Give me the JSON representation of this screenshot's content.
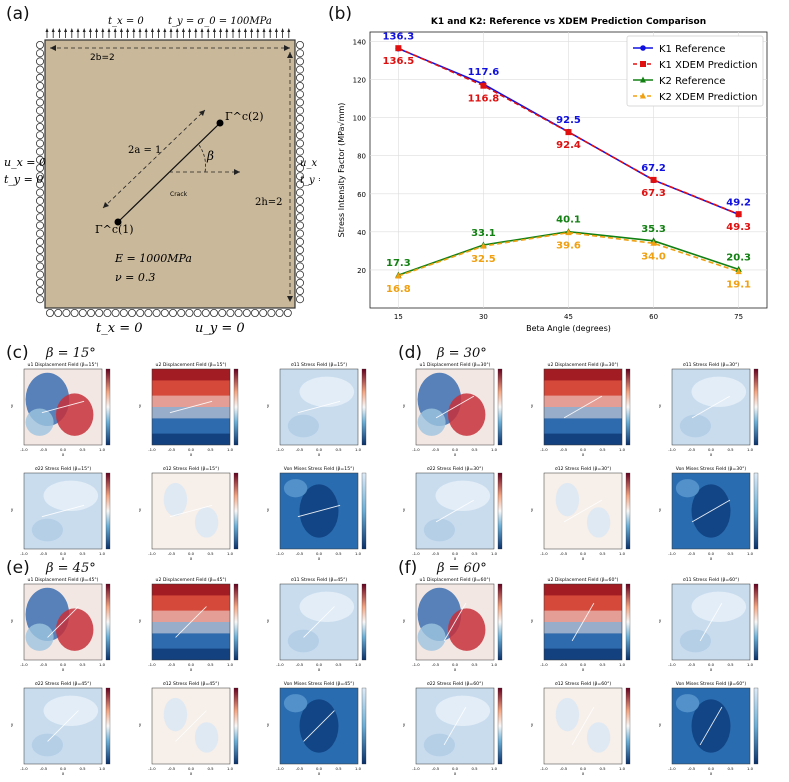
{
  "panel_labels": {
    "a": "(a)",
    "b": "(b)",
    "c": "(c)",
    "d": "(d)",
    "e": "(e)",
    "f": "(f)"
  },
  "panel_a": {
    "top_bc": "t_x = 0",
    "top_stress": "t_y = σ_0 = 100MPa",
    "width_label": "2b=2",
    "crack_length": "2a = 1",
    "crack_label": "Crack",
    "beta": "β",
    "tip1": "Γ^c(1)",
    "tip2": "Γ^c(2)",
    "height_label": "2h=2",
    "left_bc1": "u_x = 0",
    "left_bc2": "t_y = 0",
    "right_bc1": "u_x = 0",
    "right_bc2": "t_y = 0",
    "modulus": "E = 1000MPa",
    "poisson": "ν = 0.3",
    "bottom_bc1": "t_x = 0",
    "bottom_bc2": "u_y = 0",
    "colors": {
      "plate": "#c9b89a",
      "border": "#333333"
    }
  },
  "chart_data": {
    "type": "line",
    "title": "K1 and K2: Reference vs XDEM Prediction Comparison",
    "xlabel": "Beta Angle (degrees)",
    "ylabel": "Stress Intensity Factor (MPa√mm)",
    "x": [
      15,
      30,
      45,
      60,
      75
    ],
    "xticks": [
      "15",
      "30",
      "45",
      "60",
      "75"
    ],
    "yticks": [
      "20",
      "40",
      "60",
      "80",
      "100",
      "120",
      "140"
    ],
    "ylim": [
      0,
      145
    ],
    "xlim": [
      10,
      80
    ],
    "grid": true,
    "legend_position": "top-right",
    "series": [
      {
        "name": "K1 Reference",
        "values": [
          136.3,
          117.6,
          92.5,
          67.2,
          49.2
        ],
        "color": "#1010e0",
        "style": "solid",
        "marker": "circle",
        "labels": [
          "136.3",
          "117.6",
          "92.5",
          "67.2",
          "49.2"
        ],
        "label_pos": "above"
      },
      {
        "name": "K1 XDEM Prediction",
        "values": [
          136.5,
          116.8,
          92.4,
          67.3,
          49.3
        ],
        "color": "#e01010",
        "style": "dashed",
        "marker": "square",
        "labels": [
          "136.5",
          "116.8",
          "92.4",
          "67.3",
          "49.3"
        ],
        "label_pos": "below"
      },
      {
        "name": "K2 Reference",
        "values": [
          17.3,
          33.1,
          40.1,
          35.3,
          20.3
        ],
        "color": "#128012",
        "style": "solid",
        "marker": "triangle",
        "labels": [
          "17.3",
          "33.1",
          "40.1",
          "35.3",
          "20.3"
        ],
        "label_pos": "above"
      },
      {
        "name": "K2 XDEM Prediction",
        "values": [
          16.8,
          32.5,
          39.6,
          34.0,
          19.1
        ],
        "color": "#f0a010",
        "style": "dashed",
        "marker": "triangle",
        "labels": [
          "16.8",
          "32.5",
          "39.6",
          "34.0",
          "19.1"
        ],
        "label_pos": "below"
      }
    ]
  },
  "field_panels": [
    {
      "key": "c",
      "beta_label": "β = 15°",
      "titles": [
        "u1 Displacement Field (β=15°)",
        "u2 Displacement Field (β=15°)",
        "σ11 Stress Field (β=15°)",
        "σ22 Stress Field (β=15°)",
        "σ12 Stress Field (β=15°)",
        "Von Mises Stress Field (β=15°)"
      ]
    },
    {
      "key": "d",
      "beta_label": "β = 30°",
      "titles": [
        "u1 Displacement Field (β=30°)",
        "u2 Displacement Field (β=30°)",
        "σ11 Stress Field (β=30°)",
        "σ22 Stress Field (β=30°)",
        "σ12 Stress Field (β=30°)",
        "Von Mises Stress Field (β=30°)"
      ]
    },
    {
      "key": "e",
      "beta_label": "β = 45°",
      "titles": [
        "u1 Displacement Field (β=45°)",
        "u2 Displacement Field (β=45°)",
        "σ11 Stress Field (β=45°)",
        "σ22 Stress Field (β=45°)",
        "σ12 Stress Field (β=45°)",
        "Von Mises Stress Field (β=45°)"
      ]
    },
    {
      "key": "f",
      "beta_label": "β = 60°",
      "titles": [
        "u1 Displacement Field (β=60°)",
        "u2 Displacement Field (β=60°)",
        "σ11 Stress Field (β=60°)",
        "σ22 Stress Field (β=60°)",
        "σ12 Stress Field (β=60°)",
        "Von Mises Stress Field (β=60°)"
      ]
    }
  ],
  "field_axis": {
    "xticks": [
      "-1.0",
      "-0.5",
      "0.0",
      "0.5",
      "1.0"
    ],
    "xlabel": "x",
    "ylabel": "y"
  }
}
